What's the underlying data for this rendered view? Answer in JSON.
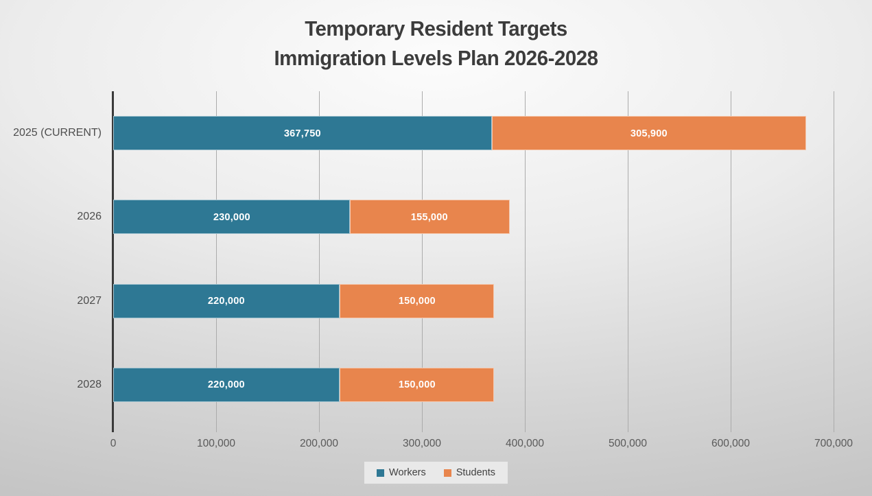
{
  "title": {
    "line1": "Temporary Resident Targets",
    "line2": "Immigration Levels Plan 2026-2028"
  },
  "chart_data": {
    "type": "bar",
    "orientation": "horizontal-stacked",
    "title": "Temporary Resident Targets Immigration Levels Plan 2026-2028",
    "categories": [
      "2025 (CURRENT)",
      "2026",
      "2027",
      "2028"
    ],
    "series": [
      {
        "name": "Workers",
        "color": "#2E7894",
        "values": [
          367750,
          230000,
          220000,
          220000
        ],
        "value_labels": [
          "367,750",
          "230,000",
          "220,000",
          "220,000"
        ]
      },
      {
        "name": "Students",
        "color": "#E8854D",
        "values": [
          305900,
          155000,
          150000,
          150000
        ],
        "value_labels": [
          "305,900",
          "155,000",
          "150,000",
          "150,000"
        ]
      }
    ],
    "xlim": [
      0,
      700000
    ],
    "x_tick_interval": 100000,
    "x_tick_labels": [
      "0",
      "100,000",
      "200,000",
      "300,000",
      "400,000",
      "500,000",
      "600,000",
      "700,000"
    ],
    "grid": true,
    "legend_position": "bottom",
    "value_label_color": "#FFFFFF",
    "axis_color": "#3A3A3A",
    "gridline_color": "#ABABAB"
  }
}
